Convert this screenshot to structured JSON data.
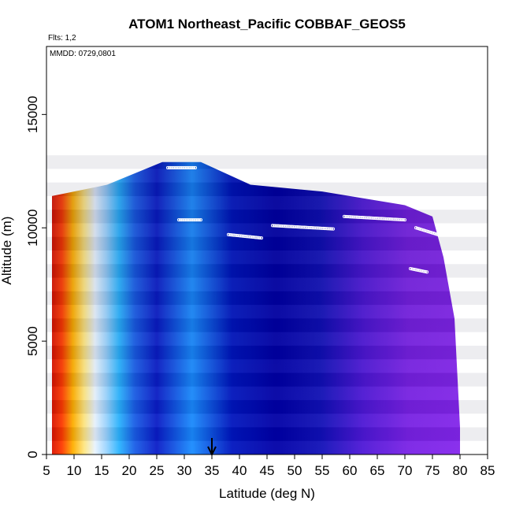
{
  "chart_data": {
    "type": "heatmap",
    "title": "ATOM1 Northeast_Pacific COBBAF_GEOS5",
    "flights_text": "Flts: 1,2",
    "dates_text": "MMDD: 0729,0801",
    "xlabel": "Latitude (deg N)",
    "ylabel": "Altitude (m)",
    "xlim": [
      5,
      85
    ],
    "ylim": [
      0,
      18000
    ],
    "xticks": [
      "5",
      "10",
      "15",
      "20",
      "25",
      "30",
      "35",
      "40",
      "45",
      "50",
      "55",
      "60",
      "65",
      "70",
      "75",
      "80",
      "85"
    ],
    "yticks": [
      "0",
      "5000",
      "10000",
      "15000"
    ],
    "arrow_latitude": 35,
    "colors": {
      "low_red": "#d40000",
      "mid_yellow": "#ffd21e",
      "pale": "#e8f4ff",
      "cyan": "#29b6ff",
      "blue": "#0a16c8",
      "navy": "#0000a8",
      "purple": "#7a22e6",
      "points": "#ffffff"
    },
    "altitude_top_profile": [
      {
        "x": 6,
        "y": 11400
      },
      {
        "x": 16,
        "y": 11900
      },
      {
        "x": 26,
        "y": 12900
      },
      {
        "x": 33,
        "y": 12900
      },
      {
        "x": 42,
        "y": 11900
      },
      {
        "x": 55,
        "y": 11600
      },
      {
        "x": 70,
        "y": 11000
      },
      {
        "x": 75,
        "y": 10500
      },
      {
        "x": 77,
        "y": 8700
      },
      {
        "x": 79,
        "y": 6000
      },
      {
        "x": 80,
        "y": 1200
      }
    ],
    "flight_track_segments": [
      {
        "x": [
          27,
          32
        ],
        "y": [
          12650,
          12650
        ]
      },
      {
        "x": [
          29,
          33
        ],
        "y": [
          10350,
          10350
        ]
      },
      {
        "x": [
          38,
          44
        ],
        "y": [
          9700,
          9550
        ]
      },
      {
        "x": [
          46,
          57
        ],
        "y": [
          10100,
          9950
        ]
      },
      {
        "x": [
          59,
          70
        ],
        "y": [
          10500,
          10350
        ]
      },
      {
        "x": [
          72,
          76
        ],
        "y": [
          10000,
          9700
        ]
      },
      {
        "x": [
          71,
          74
        ],
        "y": [
          8200,
          8050
        ]
      }
    ]
  }
}
